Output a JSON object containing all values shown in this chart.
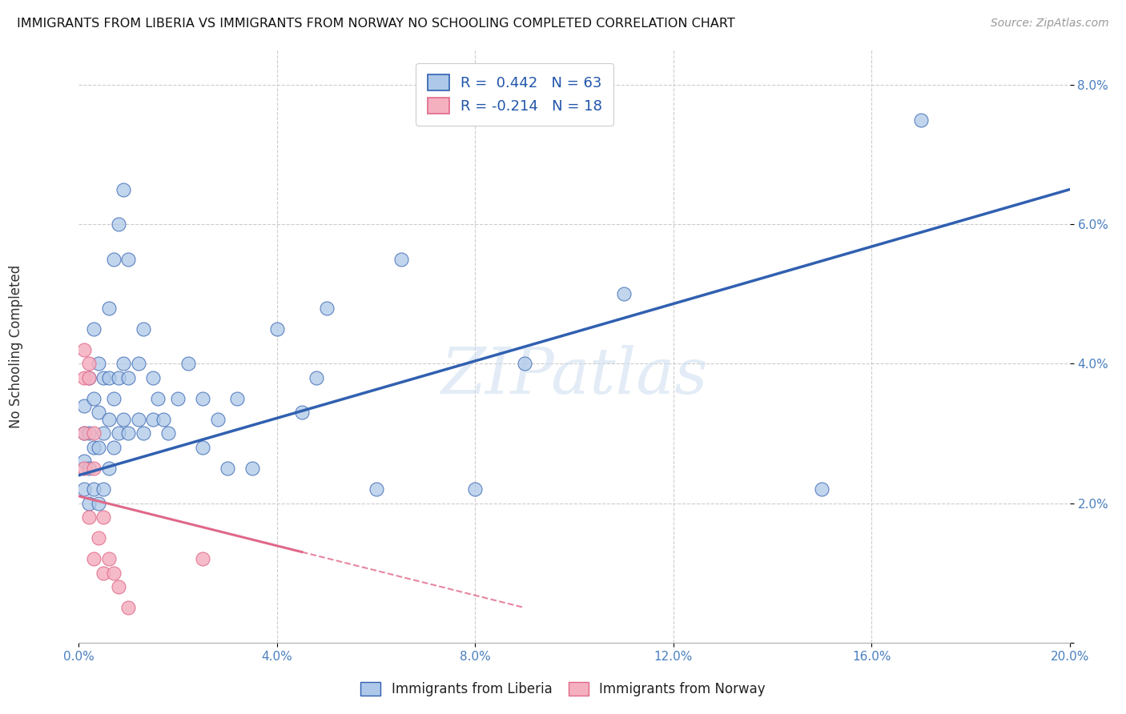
{
  "title": "IMMIGRANTS FROM LIBERIA VS IMMIGRANTS FROM NORWAY NO SCHOOLING COMPLETED CORRELATION CHART",
  "source": "Source: ZipAtlas.com",
  "ylabel": "No Schooling Completed",
  "xlim": [
    0.0,
    0.2
  ],
  "ylim": [
    0.0,
    0.085
  ],
  "xticks": [
    0.0,
    0.04,
    0.08,
    0.12,
    0.16,
    0.2
  ],
  "yticks": [
    0.0,
    0.02,
    0.04,
    0.06,
    0.08
  ],
  "xtick_labels": [
    "0.0%",
    "4.0%",
    "8.0%",
    "12.0%",
    "16.0%",
    "20.0%"
  ],
  "ytick_labels": [
    "",
    "2.0%",
    "4.0%",
    "6.0%",
    "8.0%"
  ],
  "liberia_R": 0.442,
  "liberia_N": 63,
  "norway_R": -0.214,
  "norway_N": 18,
  "liberia_color": "#adc8e8",
  "norway_color": "#f5b0c0",
  "liberia_line_color": "#3060b0",
  "norway_line_color": "#e06888",
  "watermark": "ZIPatlas",
  "background_color": "#ffffff",
  "grid_color": "#cccccc",
  "liberia_line_x0": 0.0,
  "liberia_line_y0": 0.024,
  "liberia_line_x1": 0.2,
  "liberia_line_y1": 0.065,
  "norway_line_x0": 0.0,
  "norway_line_y0": 0.021,
  "norway_line_x1_solid": 0.045,
  "norway_line_x1_dash": 0.09,
  "liberia_x": [
    0.001,
    0.001,
    0.001,
    0.001,
    0.002,
    0.002,
    0.002,
    0.002,
    0.003,
    0.003,
    0.003,
    0.003,
    0.004,
    0.004,
    0.004,
    0.004,
    0.005,
    0.005,
    0.005,
    0.006,
    0.006,
    0.006,
    0.006,
    0.007,
    0.007,
    0.007,
    0.008,
    0.008,
    0.008,
    0.009,
    0.009,
    0.009,
    0.01,
    0.01,
    0.01,
    0.012,
    0.012,
    0.013,
    0.013,
    0.015,
    0.015,
    0.016,
    0.017,
    0.018,
    0.02,
    0.022,
    0.025,
    0.025,
    0.028,
    0.03,
    0.032,
    0.035,
    0.04,
    0.045,
    0.048,
    0.05,
    0.06,
    0.065,
    0.08,
    0.09,
    0.11,
    0.15,
    0.17
  ],
  "liberia_y": [
    0.022,
    0.026,
    0.03,
    0.034,
    0.02,
    0.025,
    0.03,
    0.038,
    0.022,
    0.028,
    0.035,
    0.045,
    0.02,
    0.028,
    0.033,
    0.04,
    0.022,
    0.03,
    0.038,
    0.025,
    0.032,
    0.038,
    0.048,
    0.028,
    0.035,
    0.055,
    0.03,
    0.038,
    0.06,
    0.032,
    0.04,
    0.065,
    0.03,
    0.038,
    0.055,
    0.032,
    0.04,
    0.03,
    0.045,
    0.032,
    0.038,
    0.035,
    0.032,
    0.03,
    0.035,
    0.04,
    0.035,
    0.028,
    0.032,
    0.025,
    0.035,
    0.025,
    0.045,
    0.033,
    0.038,
    0.048,
    0.022,
    0.055,
    0.022,
    0.04,
    0.05,
    0.022,
    0.075
  ],
  "norway_x": [
    0.001,
    0.001,
    0.001,
    0.001,
    0.002,
    0.002,
    0.002,
    0.003,
    0.003,
    0.003,
    0.004,
    0.005,
    0.005,
    0.006,
    0.007,
    0.008,
    0.01,
    0.025
  ],
  "norway_y": [
    0.03,
    0.038,
    0.042,
    0.025,
    0.038,
    0.04,
    0.018,
    0.025,
    0.03,
    0.012,
    0.015,
    0.018,
    0.01,
    0.012,
    0.01,
    0.008,
    0.005,
    0.012
  ]
}
